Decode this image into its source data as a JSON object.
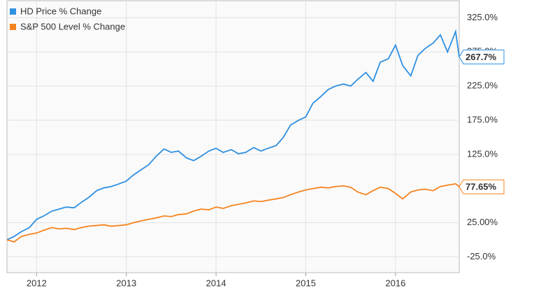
{
  "chart_data": {
    "type": "line",
    "x": [
      2011.67,
      2011.75,
      2011.83,
      2011.92,
      2012.0,
      2012.08,
      2012.17,
      2012.25,
      2012.33,
      2012.42,
      2012.5,
      2012.58,
      2012.67,
      2012.75,
      2012.83,
      2012.92,
      2013.0,
      2013.08,
      2013.17,
      2013.25,
      2013.33,
      2013.42,
      2013.5,
      2013.58,
      2013.67,
      2013.75,
      2013.83,
      2013.92,
      2014.0,
      2014.08,
      2014.17,
      2014.25,
      2014.33,
      2014.42,
      2014.5,
      2014.58,
      2014.67,
      2014.75,
      2014.83,
      2014.92,
      2015.0,
      2015.08,
      2015.17,
      2015.25,
      2015.33,
      2015.42,
      2015.5,
      2015.58,
      2015.67,
      2015.75,
      2015.83,
      2015.92,
      2016.0,
      2016.08,
      2016.17,
      2016.25,
      2016.33,
      2016.42,
      2016.5,
      2016.58,
      2016.67,
      2016.71
    ],
    "series": [
      {
        "name": "HD Price % Change",
        "color": "#2f8fe0",
        "end_label": "267.7%",
        "values": [
          0,
          5,
          12,
          18,
          30,
          35,
          42,
          45,
          48,
          47,
          55,
          62,
          72,
          76,
          78,
          82,
          86,
          95,
          103,
          110,
          122,
          133,
          128,
          130,
          120,
          116,
          122,
          130,
          134,
          128,
          132,
          126,
          128,
          135,
          130,
          134,
          138,
          150,
          168,
          175,
          180,
          200,
          210,
          220,
          225,
          228,
          225,
          235,
          245,
          232,
          260,
          265,
          285,
          255,
          240,
          270,
          280,
          288,
          300,
          275,
          305,
          267.7
        ]
      },
      {
        "name": "S&P 500 Level % Change",
        "color": "#f5841f",
        "end_label": "77.65%",
        "values": [
          0,
          -3,
          5,
          8,
          10,
          14,
          18,
          16,
          17,
          15,
          18,
          20,
          21,
          22,
          20,
          21,
          22,
          25,
          28,
          30,
          32,
          35,
          34,
          37,
          38,
          42,
          45,
          44,
          48,
          46,
          50,
          52,
          54,
          57,
          56,
          58,
          60,
          62,
          66,
          70,
          73,
          75,
          77,
          76,
          78,
          79,
          77,
          70,
          66,
          72,
          77,
          75,
          68,
          60,
          70,
          73,
          74,
          72,
          78,
          80,
          82,
          77.65
        ]
      }
    ],
    "xlim": [
      2011.67,
      2016.71
    ],
    "xticks": [
      2012,
      2013,
      2014,
      2015,
      2016
    ],
    "ylim": [
      -48,
      350
    ],
    "yticks": [
      {
        "value": 325,
        "label": "325.0%"
      },
      {
        "value": 275,
        "label": "275.0%"
      },
      {
        "value": 225,
        "label": "225.0%"
      },
      {
        "value": 175,
        "label": "175.0%"
      },
      {
        "value": 125,
        "label": "125.0%"
      },
      {
        "value": 25,
        "label": "25.00%"
      },
      {
        "value": -25,
        "label": "-25.0%"
      }
    ],
    "grid": true,
    "legend": "top-left"
  }
}
